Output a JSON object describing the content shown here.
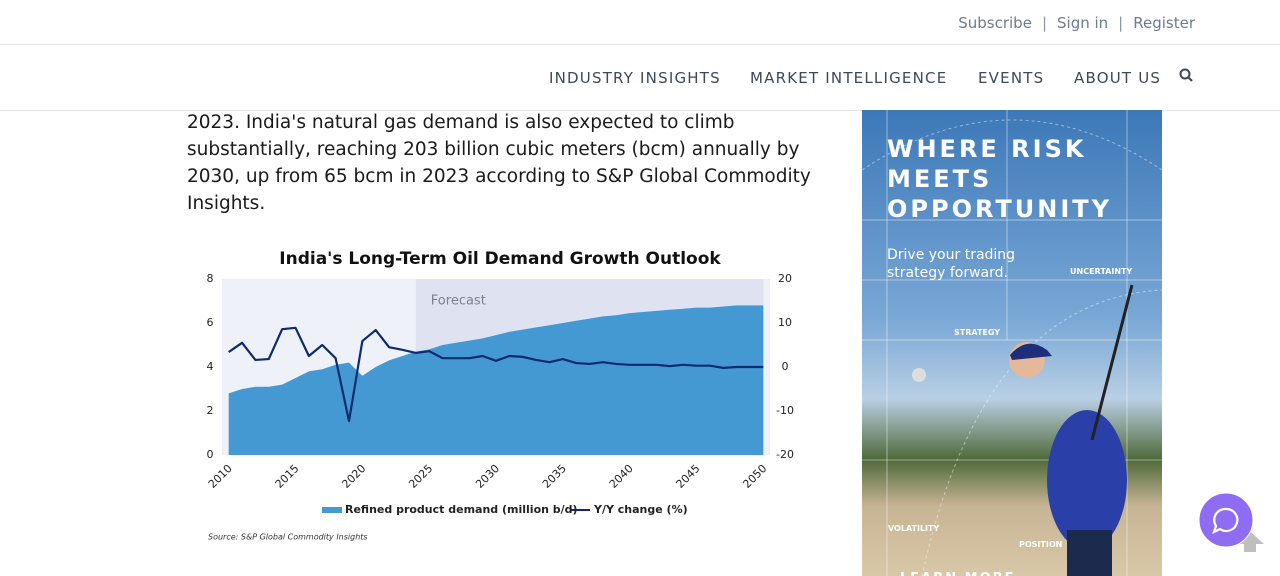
{
  "header": {
    "links": [
      "Subscribe",
      "Sign in",
      "Register"
    ]
  },
  "nav": {
    "items": [
      "INDUSTRY INSIGHTS",
      "MARKET INTELLIGENCE",
      "EVENTS",
      "ABOUT US"
    ]
  },
  "article": {
    "paragraph_lines": [
      "2023. India's natural gas demand is also expected to climb",
      "substantially, reaching 203 billion cubic meters (bcm) annually by",
      "2030, up from 65 bcm in 2023 according to S&P Global Commodity",
      "Insights."
    ]
  },
  "chart_data": {
    "type": "area",
    "title": "India's Long-Term Oil Demand Growth Outlook",
    "source": "Source: S&P Global Commodity Insights",
    "x": [
      2010,
      2011,
      2012,
      2013,
      2014,
      2015,
      2016,
      2017,
      2018,
      2019,
      2020,
      2021,
      2022,
      2023,
      2024,
      2025,
      2026,
      2027,
      2028,
      2029,
      2030,
      2031,
      2032,
      2033,
      2034,
      2035,
      2036,
      2037,
      2038,
      2039,
      2040,
      2041,
      2042,
      2043,
      2044,
      2045,
      2046,
      2047,
      2048,
      2049,
      2050
    ],
    "xlim": [
      2009.5,
      2050.5
    ],
    "xticks": [
      2010,
      2015,
      2020,
      2025,
      2030,
      2035,
      2040,
      2045,
      2050
    ],
    "ylim": [
      0,
      8
    ],
    "yticks": [
      0,
      2,
      4,
      6,
      8
    ],
    "y2lim": [
      -20,
      20
    ],
    "y2ticks": [
      -20,
      -10,
      0,
      10,
      20
    ],
    "forecast": {
      "label": "Forecast",
      "xlim": [
        2024,
        2050
      ],
      "color": "#dfe3f1"
    },
    "series": [
      {
        "name": "Refined product demand (million b/d)",
        "type": "area",
        "color": "#4499d2",
        "values": [
          2.8,
          3.0,
          3.1,
          3.1,
          3.2,
          3.5,
          3.8,
          3.9,
          4.1,
          4.2,
          3.6,
          4.0,
          4.3,
          4.5,
          4.7,
          4.8,
          5.0,
          5.1,
          5.2,
          5.3,
          5.45,
          5.6,
          5.7,
          5.8,
          5.9,
          6.0,
          6.1,
          6.2,
          6.3,
          6.35,
          6.45,
          6.5,
          6.55,
          6.6,
          6.65,
          6.7,
          6.7,
          6.75,
          6.8,
          6.8,
          6.8
        ]
      },
      {
        "name": "Y/Y change (%)",
        "type": "line",
        "axis": "y2",
        "color": "#0d2b6e",
        "values": [
          3.4,
          5.5,
          1.6,
          1.8,
          8.6,
          8.9,
          2.5,
          5.0,
          2.0,
          -12.3,
          5.9,
          8.4,
          4.5,
          3.9,
          3.2,
          3.6,
          2.0,
          2.0,
          2.0,
          2.5,
          1.4,
          2.5,
          2.3,
          1.6,
          1.1,
          1.8,
          0.9,
          0.7,
          1.1,
          0.7,
          0.5,
          0.5,
          0.5,
          0.2,
          0.5,
          0.3,
          0.3,
          -0.2,
          0,
          0,
          0
        ]
      }
    ]
  },
  "ad": {
    "headline_lines": [
      "WHERE RISK",
      "MEETS",
      "OPPORTUNITY"
    ],
    "subtext_lines": [
      "Drive your trading",
      "strategy forward."
    ],
    "labels": [
      "UNCERTAINTY",
      "STRATEGY",
      "VOLATILITY",
      "POSITION"
    ],
    "cta": "LEARN MORE"
  }
}
